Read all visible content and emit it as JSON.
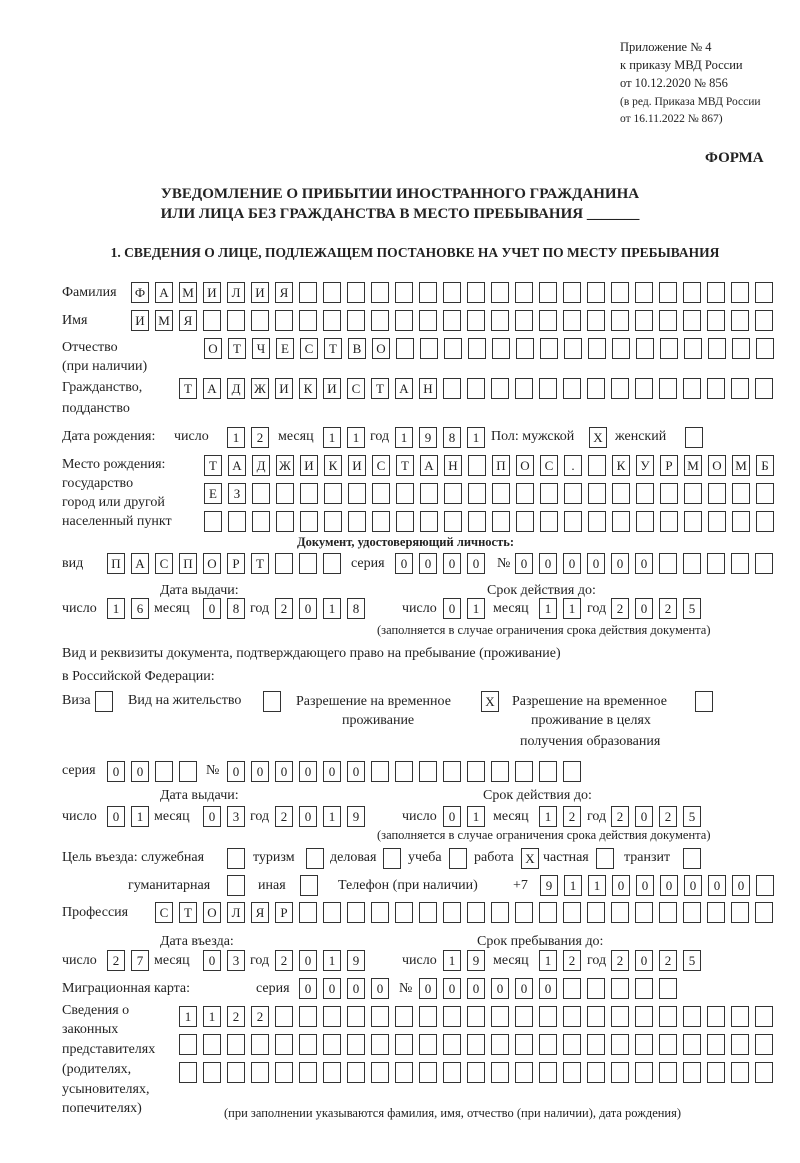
{
  "header": {
    "appendix": [
      "Приложение № 4",
      "к приказу МВД России",
      "от 10.12.2020 № 856"
    ],
    "revision": [
      "(в ред. Приказа МВД России",
      "от 16.11.2022 № 867)"
    ],
    "forma": "ФОРМА",
    "title1": "УВЕДОМЛЕНИЕ О ПРИБЫТИИ ИНОСТРАННОГО ГРАЖДАНИНА",
    "title2": "ИЛИ ЛИЦА БЕЗ ГРАЖДАНСТВА В МЕСТО ПРЕБЫВАНИЯ _______",
    "section1": "1. СВЕДЕНИЯ О ЛИЦЕ, ПОДЛЕЖАЩЕМ ПОСТАНОВКЕ НА УЧЕТ ПО МЕСТУ ПРЕБЫВАНИЯ"
  },
  "labels": {
    "surname": "Фамилия",
    "name": "Имя",
    "patronymic": "Отчество",
    "patronymic2": "(при наличии)",
    "citizenship": "Гражданство,",
    "citizenship2": "подданство",
    "birth_date": "Дата рождения:",
    "day": "число",
    "month": "месяц",
    "year": "год",
    "sex": "Пол: мужской",
    "female": "женский",
    "birthplace": [
      "Место рождения:",
      "государство",
      "город или другой",
      "населенный пункт"
    ],
    "id_doc": "Документ, удостоверяющий личность:",
    "kind": "вид",
    "series": "серия",
    "number": "№",
    "issue_date": "Дата выдачи:",
    "valid_until": "Срок действия до:",
    "valid_note": "(заполняется в случае ограничения срока действия документа)",
    "right_doc1": "Вид и реквизиты документа, подтверждающего право на пребывание (проживание)",
    "right_doc2": "в Российской Федерации:",
    "visa": "Виза",
    "residence": "Вид на жительство",
    "trp": [
      "Разрешение на временное",
      "проживание"
    ],
    "trp_edu": [
      "Разрешение на временное",
      "проживание в целях",
      "получения образования"
    ],
    "purpose": "Цель въезда: служебная",
    "tourism": "туризм",
    "business": "деловая",
    "study": "учеба",
    "work": "работа",
    "private": "частная",
    "transit": "транзит",
    "humanitarian": "гуманитарная",
    "other": "иная",
    "phone": "Телефон (при наличии)",
    "phone_prefix": "+7",
    "profession": "Профессия",
    "entry_date": "Дата въезда:",
    "stay_until": "Срок пребывания до:",
    "migration_card": "Миграционная карта:",
    "representatives": [
      "Сведения о",
      "законных",
      "представителях",
      "(родителях,",
      "усыновителях,",
      "попечителях)"
    ],
    "rep_note": "(при заполнении указываются фамилия, имя, отчество (при наличии), дата рождения)"
  },
  "fields": {
    "surname": "ФАМИЛИЯ",
    "name": "ИМЯ",
    "patronymic": "ОТЧЕСТВО",
    "citizenship": "ТАДЖИКИСТАН",
    "birth_day": "12",
    "birth_month": "11",
    "birth_year": "1981",
    "sex_male": "X",
    "sex_female": "",
    "birthplace1": "ТАДЖИКИСТАН ПОС. КУРМОМБ",
    "birthplace2": "ЕЗ",
    "birthplace3": "",
    "doc_kind": "ПАСПОРТ",
    "doc_series": "0000",
    "doc_number": "000000",
    "doc_issue_day": "16",
    "doc_issue_month": "08",
    "doc_issue_year": "2018",
    "doc_valid_day": "01",
    "doc_valid_month": "11",
    "doc_valid_year": "2025",
    "visa": "",
    "residence": "",
    "trp": "X",
    "trp_edu": "",
    "right_series": "00",
    "right_number": "000000",
    "right_issue_day": "01",
    "right_issue_month": "03",
    "right_issue_year": "2019",
    "right_valid_day": "01",
    "right_valid_month": "12",
    "right_valid_year": "2025",
    "p_official": "",
    "p_tourism": "",
    "p_business": "",
    "p_study": "",
    "p_work": "X",
    "p_private": "",
    "p_transit": "",
    "p_humanitarian": "",
    "p_other": "",
    "phone": "911000000",
    "profession": "СТОЛЯР",
    "entry_day": "27",
    "entry_month": "03",
    "entry_year": "2019",
    "stay_day": "19",
    "stay_month": "12",
    "stay_year": "2025",
    "mig_series": "0000",
    "mig_number": "000000",
    "rep1": "1122",
    "rep2": "",
    "rep3": ""
  }
}
